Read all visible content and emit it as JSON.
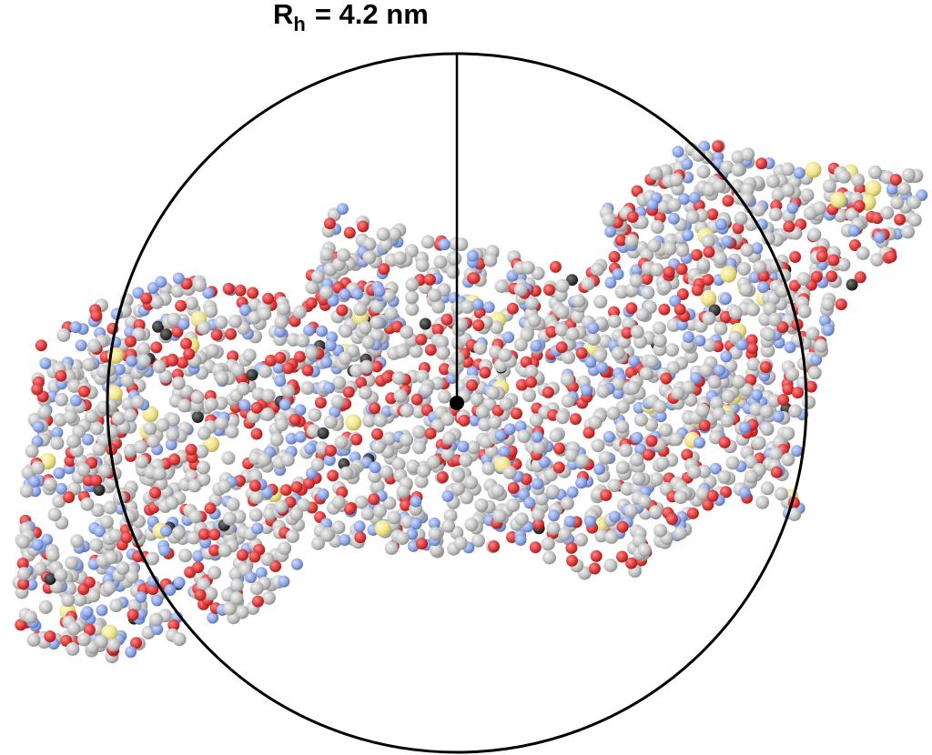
{
  "label": {
    "symbol": "R",
    "subscript": "h",
    "text": "= 4.2 nm"
  }
}
